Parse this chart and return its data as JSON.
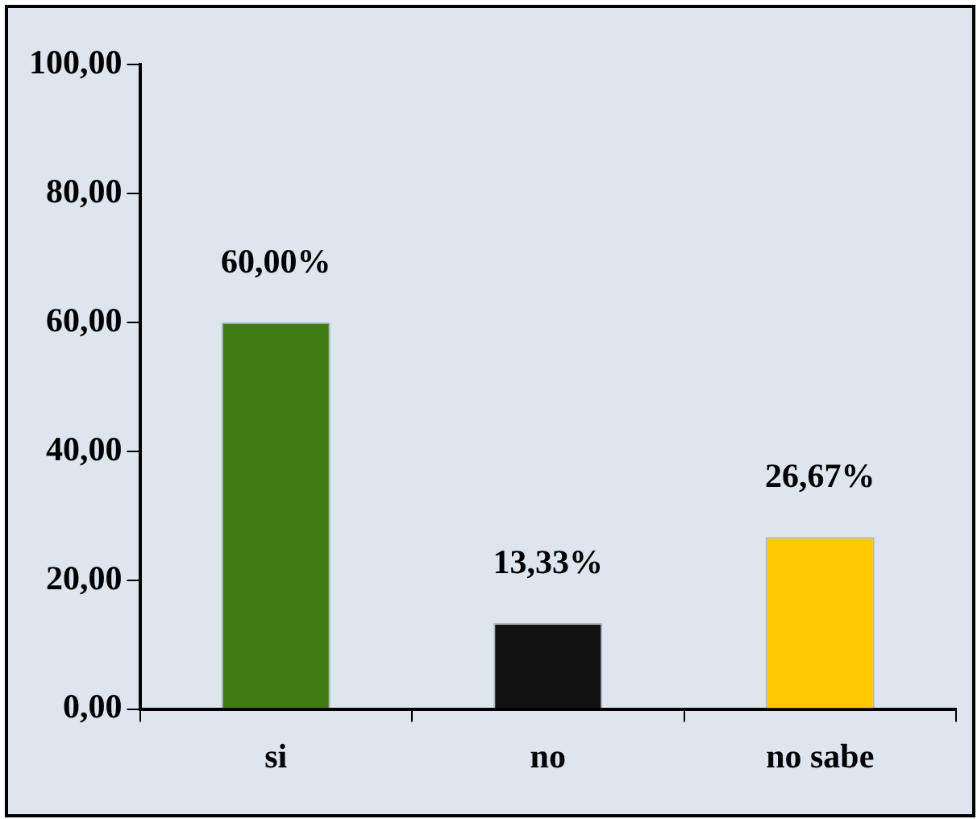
{
  "chart_data": {
    "type": "bar",
    "categories": [
      "si",
      "no",
      "no sabe"
    ],
    "values": [
      60.0,
      13.33,
      26.67
    ],
    "colors": [
      "#3f7a12",
      "#111111",
      "#ffc800"
    ],
    "value_labels": [
      "60,00%",
      "13,33%",
      "26,67%"
    ],
    "ylim": [
      0,
      100
    ],
    "yticks": [
      {
        "value": 0,
        "label": "0,00"
      },
      {
        "value": 20,
        "label": "20,00"
      },
      {
        "value": 40,
        "label": "40,00"
      },
      {
        "value": 60,
        "label": "60,00"
      },
      {
        "value": 80,
        "label": "80,00"
      },
      {
        "value": 100,
        "label": "100,00"
      }
    ],
    "grid": false,
    "legend": false
  }
}
